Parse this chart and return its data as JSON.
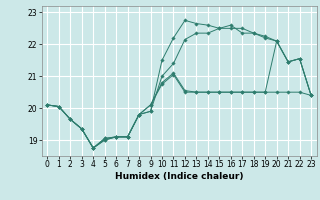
{
  "xlabel": "Humidex (Indice chaleur)",
  "bg_color": "#cce8e8",
  "grid_color": "#ffffff",
  "line_color": "#2e7d6e",
  "xlim": [
    -0.5,
    23.5
  ],
  "ylim": [
    18.5,
    23.2
  ],
  "yticks": [
    19,
    20,
    21,
    22,
    23
  ],
  "xticks": [
    0,
    1,
    2,
    3,
    4,
    5,
    6,
    7,
    8,
    9,
    10,
    11,
    12,
    13,
    14,
    15,
    16,
    17,
    18,
    19,
    20,
    21,
    22,
    23
  ],
  "series": [
    [
      20.1,
      20.05,
      19.65,
      19.35,
      18.75,
      19.0,
      19.1,
      19.1,
      19.8,
      19.9,
      21.5,
      22.2,
      22.75,
      22.65,
      22.6,
      22.5,
      22.6,
      22.35,
      22.35,
      22.2,
      22.1,
      21.45,
      21.55,
      20.4
    ],
    [
      20.1,
      20.05,
      19.65,
      19.35,
      18.75,
      19.0,
      19.1,
      19.1,
      19.8,
      19.9,
      21.0,
      21.4,
      22.15,
      22.35,
      22.35,
      22.5,
      22.5,
      22.5,
      22.35,
      22.25,
      22.1,
      21.45,
      21.55,
      20.4
    ],
    [
      20.1,
      20.05,
      19.65,
      19.35,
      18.75,
      19.05,
      19.1,
      19.1,
      19.8,
      20.1,
      20.8,
      21.1,
      20.55,
      20.5,
      20.5,
      20.5,
      20.5,
      20.5,
      20.5,
      20.5,
      20.5,
      20.5,
      20.5,
      20.4
    ],
    [
      20.1,
      20.05,
      19.65,
      19.35,
      18.75,
      19.05,
      19.1,
      19.1,
      19.8,
      20.1,
      20.75,
      21.05,
      20.5,
      20.5,
      20.5,
      20.5,
      20.5,
      20.5,
      20.5,
      20.5,
      22.1,
      21.45,
      21.55,
      20.4
    ]
  ]
}
